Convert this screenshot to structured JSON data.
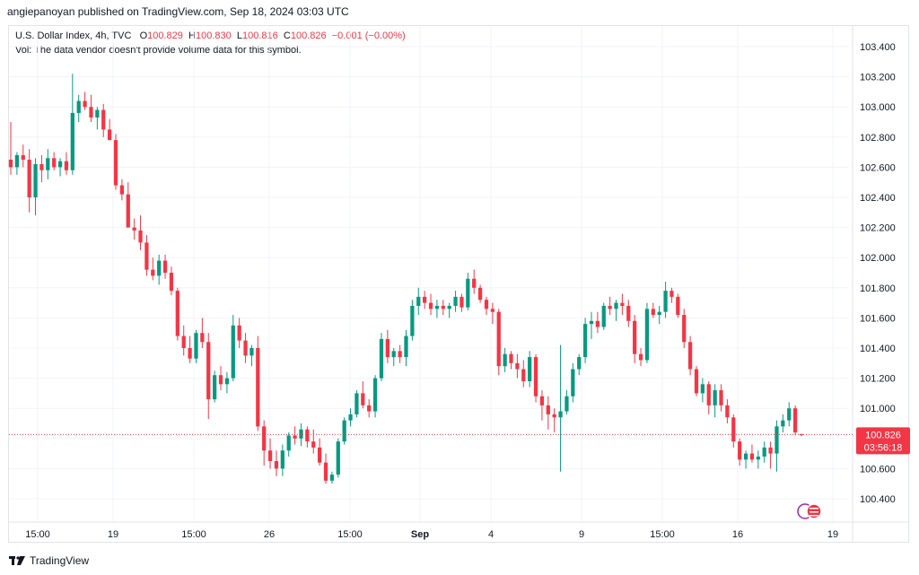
{
  "header": {
    "published": "angiepanoyan published on TradingView.com, Sep 18, 2024 03:03 UTC"
  },
  "legend": {
    "symbol": "U.S. Dollar Index, 4h, TVC",
    "open_label": "O",
    "open": "100.829",
    "high_label": "H",
    "high": "100.830",
    "low_label": "L",
    "low": "100.816",
    "close_label": "C",
    "close": "100.826",
    "change": "−0.001 (−0.00%)",
    "volume_note": "Vol: The data vendor doesn't provide volume data for this symbol."
  },
  "price_label": {
    "price": "100.826",
    "countdown": "03:56:18"
  },
  "footer": {
    "brand": "TradingView"
  },
  "colors": {
    "up": "#089981",
    "down": "#f23645",
    "grid": "#f0f3fa",
    "axis_text": "#131722"
  },
  "chart_data": {
    "type": "candlestick",
    "symbol": "U.S. Dollar Index",
    "interval": "4h",
    "ylim": [
      100.3,
      103.5
    ],
    "y_ticks": [
      100.4,
      100.6,
      100.8,
      101.0,
      101.2,
      101.4,
      101.6,
      101.8,
      102.0,
      102.2,
      102.4,
      102.6,
      102.8,
      103.0,
      103.2,
      103.4
    ],
    "x_ticks": [
      "15:00",
      "19",
      "15:00",
      "26",
      "15:00",
      "Sep",
      "4",
      "9",
      "15:00",
      "16",
      "19"
    ],
    "current_price": 100.826,
    "candles": [
      [
        102.65,
        102.9,
        102.55,
        102.6
      ],
      [
        102.6,
        102.7,
        102.55,
        102.68
      ],
      [
        102.68,
        102.75,
        102.6,
        102.65
      ],
      [
        102.65,
        102.72,
        102.3,
        102.4
      ],
      [
        102.4,
        102.66,
        102.28,
        102.62
      ],
      [
        102.62,
        102.68,
        102.5,
        102.58
      ],
      [
        102.58,
        102.72,
        102.52,
        102.66
      ],
      [
        102.66,
        102.7,
        102.58,
        102.6
      ],
      [
        102.6,
        102.66,
        102.54,
        102.64
      ],
      [
        102.64,
        102.7,
        102.55,
        102.58
      ],
      [
        102.58,
        103.22,
        102.55,
        102.96
      ],
      [
        102.96,
        103.08,
        102.9,
        103.04
      ],
      [
        103.04,
        103.1,
        102.98,
        103.0
      ],
      [
        103.0,
        103.08,
        102.9,
        102.93
      ],
      [
        102.93,
        103.0,
        102.85,
        102.98
      ],
      [
        102.98,
        103.02,
        102.8,
        102.85
      ],
      [
        102.85,
        102.92,
        102.78,
        102.78
      ],
      [
        102.78,
        102.82,
        102.45,
        102.48
      ],
      [
        102.48,
        102.52,
        102.38,
        102.42
      ],
      [
        102.42,
        102.5,
        102.2,
        102.2
      ],
      [
        102.2,
        102.26,
        102.12,
        102.18
      ],
      [
        102.18,
        102.28,
        102.05,
        102.1
      ],
      [
        102.1,
        102.15,
        101.88,
        101.92
      ],
      [
        101.92,
        102.0,
        101.85,
        101.88
      ],
      [
        101.88,
        102.02,
        101.82,
        101.98
      ],
      [
        101.98,
        102.02,
        101.86,
        101.9
      ],
      [
        101.9,
        101.94,
        101.75,
        101.78
      ],
      [
        101.78,
        101.8,
        101.45,
        101.48
      ],
      [
        101.48,
        101.55,
        101.35,
        101.4
      ],
      [
        101.4,
        101.48,
        101.3,
        101.33
      ],
      [
        101.33,
        101.52,
        101.3,
        101.5
      ],
      [
        101.5,
        101.6,
        101.4,
        101.44
      ],
      [
        101.44,
        101.5,
        100.93,
        101.06
      ],
      [
        101.06,
        101.25,
        101.04,
        101.22
      ],
      [
        101.22,
        101.28,
        101.12,
        101.16
      ],
      [
        101.16,
        101.24,
        101.1,
        101.2
      ],
      [
        101.2,
        101.62,
        101.18,
        101.55
      ],
      [
        101.55,
        101.6,
        101.4,
        101.45
      ],
      [
        101.45,
        101.5,
        101.3,
        101.35
      ],
      [
        101.35,
        101.42,
        101.28,
        101.4
      ],
      [
        101.4,
        101.48,
        100.85,
        100.88
      ],
      [
        100.88,
        100.92,
        100.62,
        100.72
      ],
      [
        100.72,
        100.8,
        100.6,
        100.65
      ],
      [
        100.65,
        100.72,
        100.55,
        100.6
      ],
      [
        100.6,
        100.76,
        100.55,
        100.72
      ],
      [
        100.72,
        100.84,
        100.68,
        100.82
      ],
      [
        100.82,
        100.88,
        100.76,
        100.8
      ],
      [
        100.8,
        100.9,
        100.75,
        100.86
      ],
      [
        100.86,
        100.88,
        100.74,
        100.78
      ],
      [
        100.78,
        100.86,
        100.7,
        100.74
      ],
      [
        100.74,
        100.8,
        100.62,
        100.64
      ],
      [
        100.64,
        100.7,
        100.5,
        100.52
      ],
      [
        100.52,
        100.58,
        100.5,
        100.56
      ],
      [
        100.56,
        100.8,
        100.54,
        100.78
      ],
      [
        100.78,
        100.94,
        100.76,
        100.92
      ],
      [
        100.92,
        101.0,
        100.88,
        100.96
      ],
      [
        100.96,
        101.12,
        100.94,
        101.1
      ],
      [
        101.1,
        101.18,
        101.0,
        101.02
      ],
      [
        101.02,
        101.06,
        100.94,
        100.98
      ],
      [
        100.98,
        101.22,
        100.94,
        101.2
      ],
      [
        101.2,
        101.5,
        101.18,
        101.46
      ],
      [
        101.46,
        101.52,
        101.3,
        101.34
      ],
      [
        101.34,
        101.4,
        101.28,
        101.38
      ],
      [
        101.38,
        101.42,
        101.3,
        101.34
      ],
      [
        101.34,
        101.52,
        101.28,
        101.48
      ],
      [
        101.48,
        101.72,
        101.45,
        101.68
      ],
      [
        101.68,
        101.8,
        101.62,
        101.74
      ],
      [
        101.74,
        101.78,
        101.66,
        101.7
      ],
      [
        101.7,
        101.76,
        101.62,
        101.66
      ],
      [
        101.66,
        101.72,
        101.6,
        101.68
      ],
      [
        101.68,
        101.72,
        101.62,
        101.66
      ],
      [
        101.66,
        101.7,
        101.6,
        101.68
      ],
      [
        101.68,
        101.78,
        101.64,
        101.74
      ],
      [
        101.74,
        101.76,
        101.64,
        101.67
      ],
      [
        101.67,
        101.9,
        101.65,
        101.86
      ],
      [
        101.86,
        101.92,
        101.76,
        101.8
      ],
      [
        101.8,
        101.82,
        101.7,
        101.72
      ],
      [
        101.72,
        101.74,
        101.62,
        101.66
      ],
      [
        101.66,
        101.7,
        101.56,
        101.64
      ],
      [
        101.64,
        101.66,
        101.22,
        101.28
      ],
      [
        101.28,
        101.4,
        101.24,
        101.36
      ],
      [
        101.36,
        101.38,
        101.26,
        101.3
      ],
      [
        101.3,
        101.36,
        101.2,
        101.26
      ],
      [
        101.26,
        101.32,
        101.14,
        101.18
      ],
      [
        101.18,
        101.38,
        101.14,
        101.34
      ],
      [
        101.34,
        101.36,
        101.04,
        101.08
      ],
      [
        101.08,
        101.12,
        100.92,
        101.02
      ],
      [
        101.02,
        101.08,
        100.86,
        100.96
      ],
      [
        100.96,
        101.0,
        100.84,
        100.94
      ],
      [
        100.94,
        101.42,
        100.58,
        100.98
      ],
      [
        100.98,
        101.12,
        100.96,
        101.08
      ],
      [
        101.08,
        101.3,
        101.04,
        101.26
      ],
      [
        101.26,
        101.36,
        101.22,
        101.34
      ],
      [
        101.34,
        101.6,
        101.3,
        101.56
      ],
      [
        101.56,
        101.64,
        101.46,
        101.58
      ],
      [
        101.58,
        101.64,
        101.5,
        101.54
      ],
      [
        101.54,
        101.7,
        101.52,
        101.68
      ],
      [
        101.68,
        101.74,
        101.62,
        101.66
      ],
      [
        101.66,
        101.72,
        101.58,
        101.7
      ],
      [
        101.7,
        101.76,
        101.62,
        101.68
      ],
      [
        101.68,
        101.72,
        101.54,
        101.58
      ],
      [
        101.58,
        101.62,
        101.3,
        101.36
      ],
      [
        101.36,
        101.4,
        101.28,
        101.32
      ],
      [
        101.32,
        101.7,
        101.3,
        101.66
      ],
      [
        101.66,
        101.7,
        101.6,
        101.62
      ],
      [
        101.62,
        101.68,
        101.56,
        101.64
      ],
      [
        101.64,
        101.84,
        101.6,
        101.78
      ],
      [
        101.78,
        101.8,
        101.7,
        101.74
      ],
      [
        101.74,
        101.76,
        101.6,
        101.62
      ],
      [
        101.62,
        101.66,
        101.4,
        101.44
      ],
      [
        101.44,
        101.48,
        101.22,
        101.26
      ],
      [
        101.26,
        101.28,
        101.08,
        101.1
      ],
      [
        101.1,
        101.2,
        101.04,
        101.16
      ],
      [
        101.16,
        101.18,
        100.96,
        101.02
      ],
      [
        101.02,
        101.16,
        100.94,
        101.12
      ],
      [
        101.12,
        101.16,
        100.98,
        101.02
      ],
      [
        101.02,
        101.06,
        100.9,
        100.94
      ],
      [
        100.94,
        100.96,
        100.74,
        100.78
      ],
      [
        100.78,
        100.8,
        100.62,
        100.66
      ],
      [
        100.66,
        100.72,
        100.6,
        100.7
      ],
      [
        100.7,
        100.76,
        100.64,
        100.66
      ],
      [
        100.66,
        100.72,
        100.6,
        100.68
      ],
      [
        100.68,
        100.78,
        100.64,
        100.74
      ],
      [
        100.74,
        100.78,
        100.6,
        100.7
      ],
      [
        100.7,
        100.92,
        100.58,
        100.88
      ],
      [
        100.88,
        100.96,
        100.84,
        100.92
      ],
      [
        100.92,
        101.04,
        100.88,
        101.0
      ],
      [
        101.0,
        101.02,
        100.82,
        100.84
      ],
      [
        100.829,
        100.83,
        100.816,
        100.826
      ]
    ]
  }
}
